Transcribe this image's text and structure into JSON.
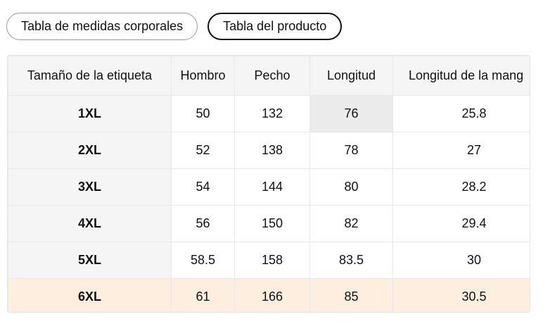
{
  "tabs": [
    "Tabla de medidas corporales",
    "Tabla del producto"
  ],
  "table": {
    "header": [
      "Tamaño de la etiqueta",
      "Hombro",
      "Pecho",
      "Longitud",
      "Longitud de la mang"
    ],
    "rows": [
      [
        "1XL",
        50,
        132,
        76,
        25.8
      ],
      [
        "2XL",
        52,
        138,
        78,
        27
      ],
      [
        "3XL",
        54,
        144,
        80,
        28.2
      ],
      [
        "4XL",
        56,
        150,
        82,
        29.4
      ],
      [
        "5XL",
        58.5,
        158,
        83.5,
        30
      ],
      [
        "6XL",
        61,
        166,
        85,
        30.5
      ]
    ]
  }
}
